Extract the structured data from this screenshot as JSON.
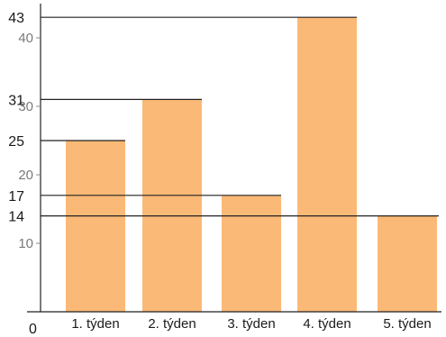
{
  "chart_data": {
    "type": "bar",
    "categories": [
      "1. týden",
      "2. týden",
      "3. týden",
      "4. týden",
      "5. týden"
    ],
    "values": [
      25,
      31,
      17,
      43,
      14
    ],
    "ylim": [
      0,
      45
    ],
    "y_ticks_minor": [
      10,
      20,
      30,
      40
    ],
    "y_ticks_major": [
      14,
      17,
      25,
      31,
      43
    ],
    "zero_label": "0",
    "bar_color": "#fbb977",
    "line_color": "#222222",
    "grid": false
  }
}
